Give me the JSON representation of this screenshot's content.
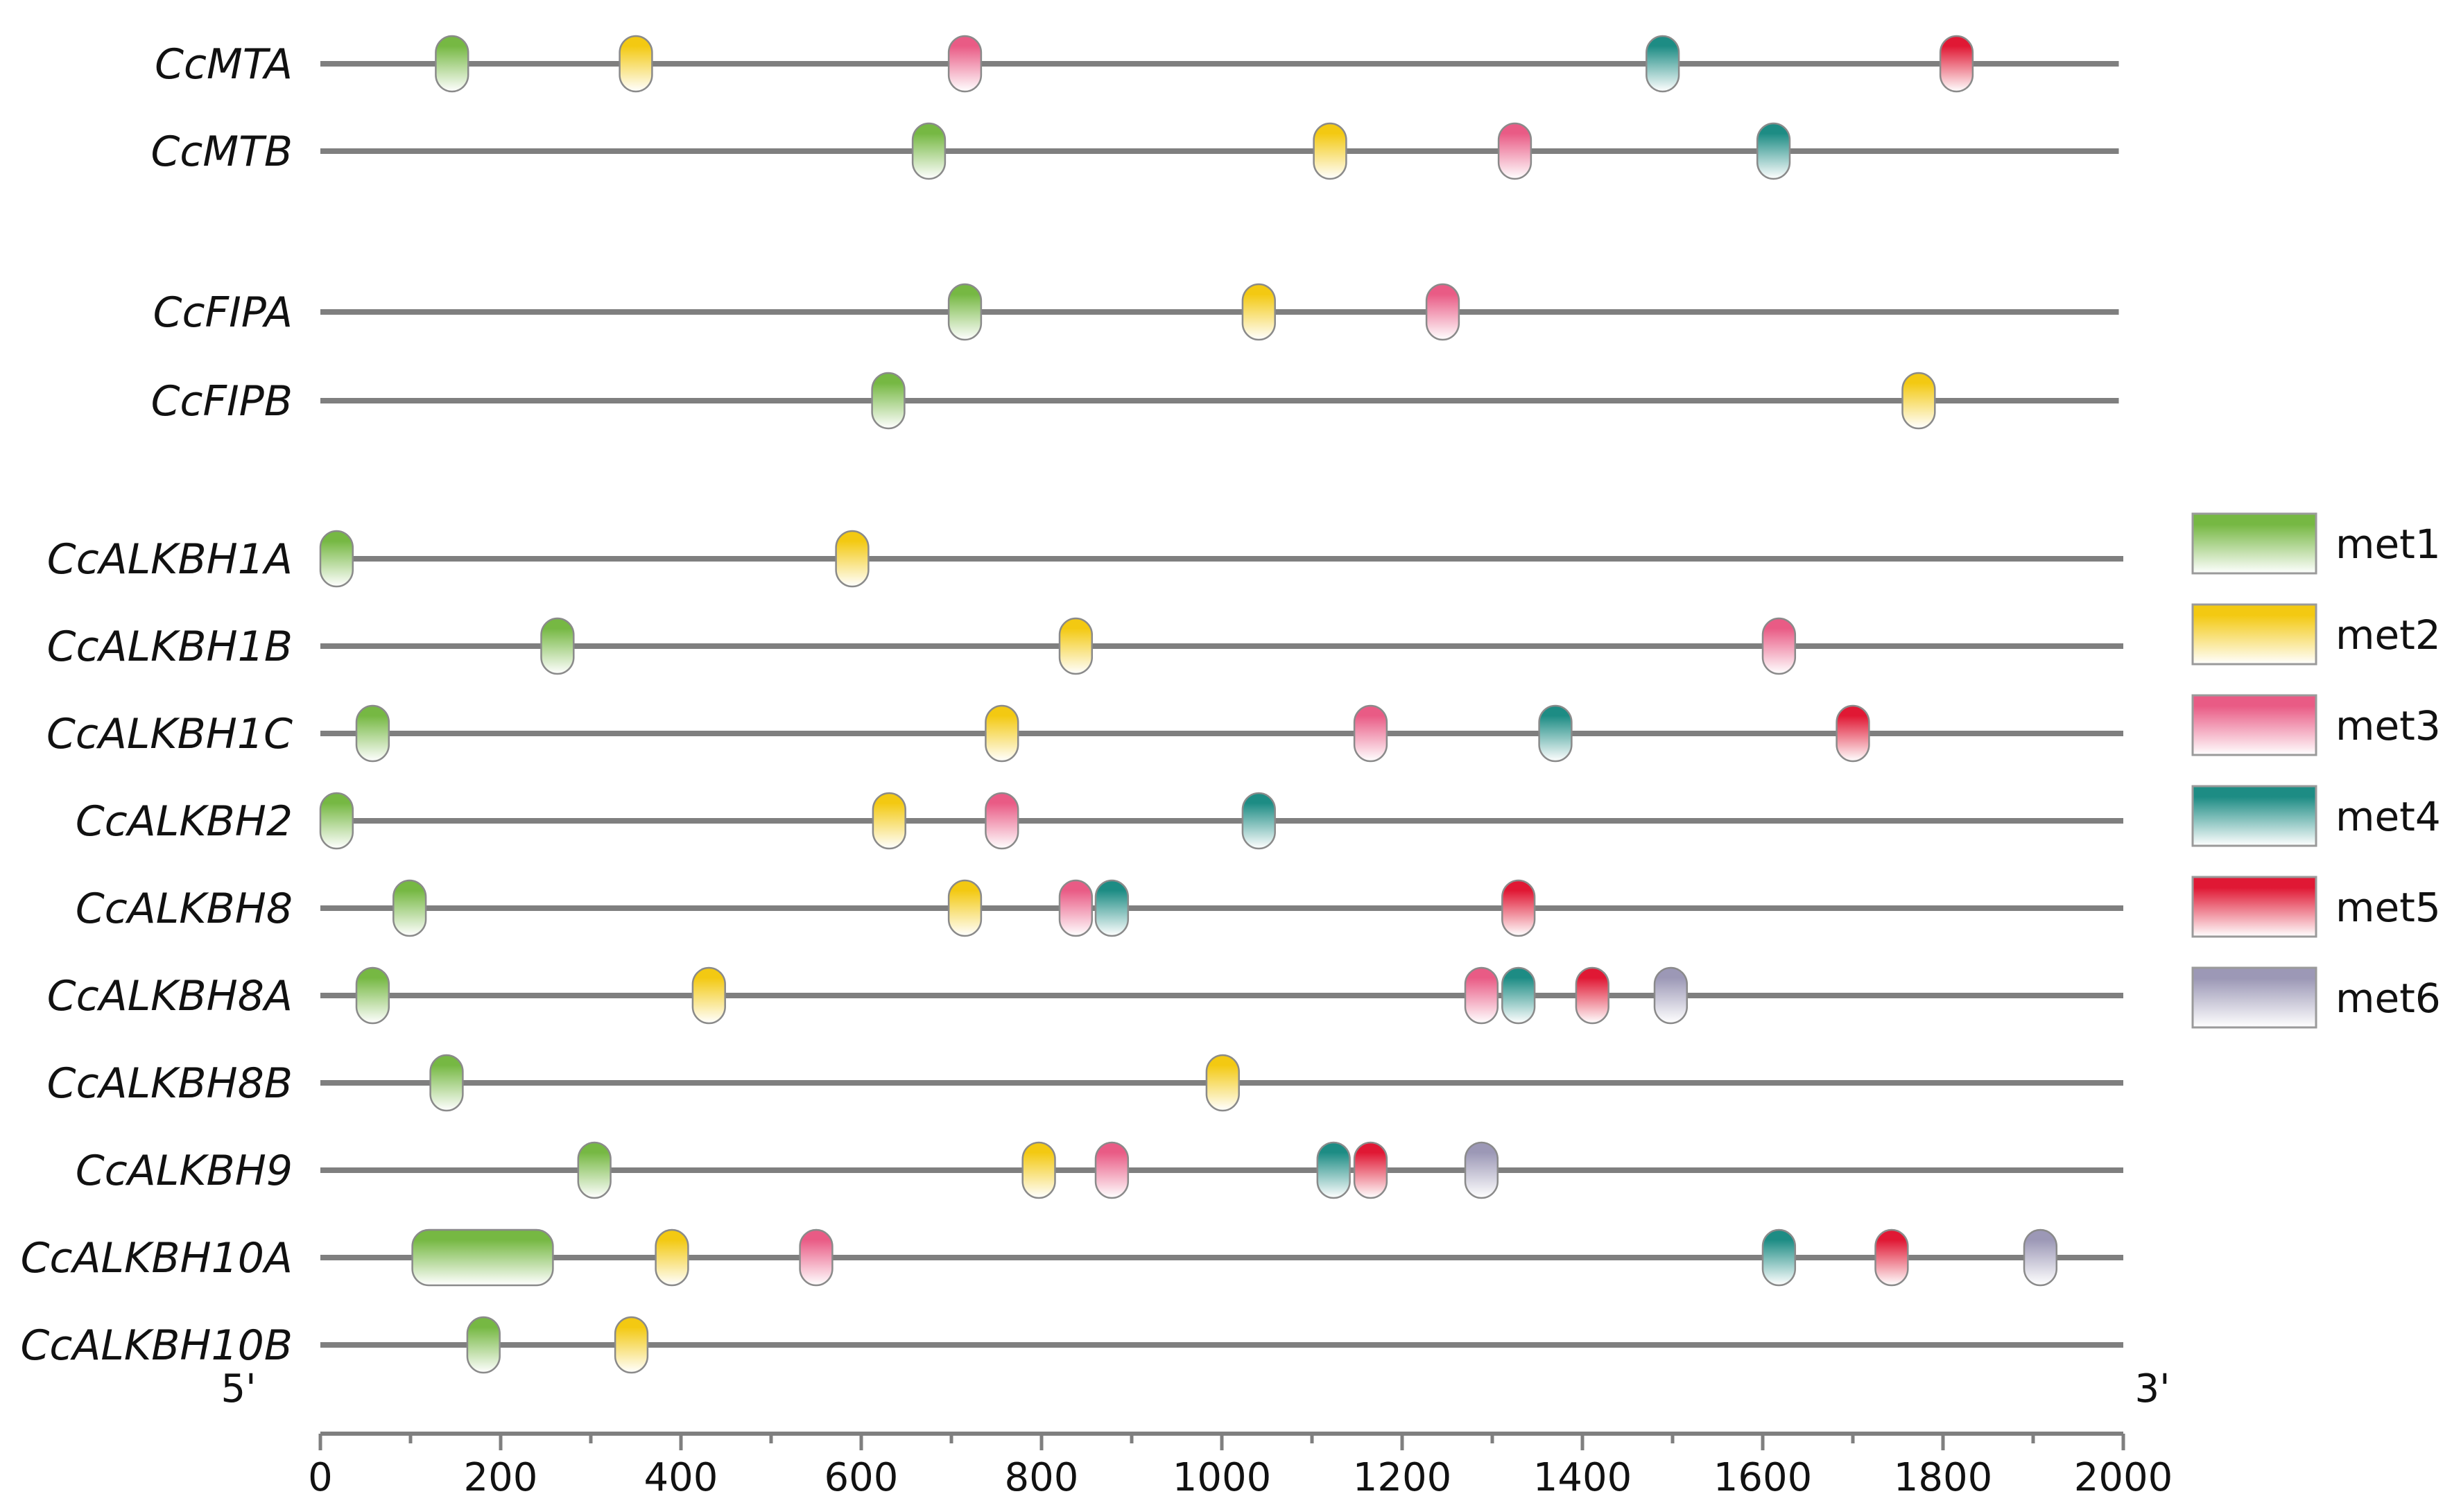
{
  "motif_colors": {
    "met1": "#76b843",
    "met2": "#f3c912",
    "met3": "#e95b85",
    "met4": "#1d8c84",
    "met5": "#e01834",
    "met6": "#9c98b6"
  },
  "axis": {
    "min": 0,
    "max": 2000,
    "ticks": [
      "0",
      "200",
      "400",
      "600",
      "800",
      "1000",
      "1200",
      "1400",
      "1600",
      "1800",
      "2000"
    ],
    "five_prime": "5'",
    "three_prime": "3'"
  },
  "legend": [
    {
      "motif": "met1",
      "label": "met1"
    },
    {
      "motif": "met2",
      "label": "met2"
    },
    {
      "motif": "met3",
      "label": "met3"
    },
    {
      "motif": "met4",
      "label": "met4"
    },
    {
      "motif": "met5",
      "label": "met5"
    },
    {
      "motif": "met6",
      "label": "met6"
    }
  ],
  "genes": [
    {
      "name": "CcMTA",
      "length": 1995,
      "motifs": [
        {
          "motif": "met1",
          "start": 128,
          "end": 164
        },
        {
          "motif": "met2",
          "start": 332,
          "end": 368
        },
        {
          "motif": "met3",
          "start": 697,
          "end": 733
        },
        {
          "motif": "met4",
          "start": 1471,
          "end": 1507
        },
        {
          "motif": "met5",
          "start": 1797,
          "end": 1833
        }
      ]
    },
    {
      "name": "CcMTB",
      "length": 1995,
      "motifs": [
        {
          "motif": "met1",
          "start": 657,
          "end": 693
        },
        {
          "motif": "met2",
          "start": 1102,
          "end": 1138
        },
        {
          "motif": "met3",
          "start": 1307,
          "end": 1343
        },
        {
          "motif": "met4",
          "start": 1594,
          "end": 1630
        }
      ]
    },
    {
      "name": "CcFIPA",
      "length": 1995,
      "motifs": [
        {
          "motif": "met1",
          "start": 697,
          "end": 733
        },
        {
          "motif": "met2",
          "start": 1023,
          "end": 1059
        },
        {
          "motif": "met3",
          "start": 1227,
          "end": 1263
        }
      ]
    },
    {
      "name": "CcFIPB",
      "length": 1995,
      "motifs": [
        {
          "motif": "met1",
          "start": 612,
          "end": 648
        },
        {
          "motif": "met2",
          "start": 1755,
          "end": 1791
        }
      ]
    },
    {
      "name": "CcALKBH1A",
      "length": 2000,
      "motifs": [
        {
          "motif": "met1",
          "start": 0,
          "end": 36
        },
        {
          "motif": "met2",
          "start": 572,
          "end": 608
        }
      ]
    },
    {
      "name": "CcALKBH1B",
      "length": 2000,
      "motifs": [
        {
          "motif": "met1",
          "start": 245,
          "end": 281
        },
        {
          "motif": "met2",
          "start": 820,
          "end": 856
        },
        {
          "motif": "met3",
          "start": 1600,
          "end": 1636
        }
      ]
    },
    {
      "name": "CcALKBH1C",
      "length": 2000,
      "motifs": [
        {
          "motif": "met1",
          "start": 40,
          "end": 76
        },
        {
          "motif": "met2",
          "start": 738,
          "end": 774
        },
        {
          "motif": "met3",
          "start": 1147,
          "end": 1183
        },
        {
          "motif": "met4",
          "start": 1352,
          "end": 1388
        },
        {
          "motif": "met5",
          "start": 1682,
          "end": 1718
        }
      ]
    },
    {
      "name": "CcALKBH2",
      "length": 2000,
      "motifs": [
        {
          "motif": "met1",
          "start": 0,
          "end": 36
        },
        {
          "motif": "met2",
          "start": 613,
          "end": 649
        },
        {
          "motif": "met3",
          "start": 738,
          "end": 774
        },
        {
          "motif": "met4",
          "start": 1023,
          "end": 1059
        }
      ]
    },
    {
      "name": "CcALKBH8",
      "length": 2000,
      "motifs": [
        {
          "motif": "met1",
          "start": 81,
          "end": 117
        },
        {
          "motif": "met2",
          "start": 697,
          "end": 733
        },
        {
          "motif": "met3",
          "start": 820,
          "end": 856
        },
        {
          "motif": "met4",
          "start": 860,
          "end": 896
        },
        {
          "motif": "met5",
          "start": 1311,
          "end": 1347
        }
      ]
    },
    {
      "name": "CcALKBH8A",
      "length": 2000,
      "motifs": [
        {
          "motif": "met1",
          "start": 40,
          "end": 76
        },
        {
          "motif": "met2",
          "start": 413,
          "end": 449
        },
        {
          "motif": "met3",
          "start": 1270,
          "end": 1306
        },
        {
          "motif": "met4",
          "start": 1311,
          "end": 1347
        },
        {
          "motif": "met5",
          "start": 1393,
          "end": 1429
        },
        {
          "motif": "met6",
          "start": 1480,
          "end": 1516
        }
      ]
    },
    {
      "name": "CcALKBH8B",
      "length": 2000,
      "motifs": [
        {
          "motif": "met1",
          "start": 122,
          "end": 158
        },
        {
          "motif": "met2",
          "start": 983,
          "end": 1019
        }
      ]
    },
    {
      "name": "CcALKBH9",
      "length": 2000,
      "motifs": [
        {
          "motif": "met1",
          "start": 286,
          "end": 322
        },
        {
          "motif": "met2",
          "start": 779,
          "end": 815
        },
        {
          "motif": "met3",
          "start": 860,
          "end": 896
        },
        {
          "motif": "met4",
          "start": 1106,
          "end": 1142
        },
        {
          "motif": "met5",
          "start": 1147,
          "end": 1183
        },
        {
          "motif": "met6",
          "start": 1270,
          "end": 1306
        }
      ]
    },
    {
      "name": "CcALKBH10A",
      "length": 2000,
      "motifs": [
        {
          "motif": "met1",
          "start": 102,
          "end": 258
        },
        {
          "motif": "met2",
          "start": 372,
          "end": 408
        },
        {
          "motif": "met3",
          "start": 532,
          "end": 568
        },
        {
          "motif": "met4",
          "start": 1600,
          "end": 1636
        },
        {
          "motif": "met5",
          "start": 1725,
          "end": 1761
        },
        {
          "motif": "met6",
          "start": 1890,
          "end": 1926
        }
      ]
    },
    {
      "name": "CcALKBH10B",
      "length": 2000,
      "motifs": [
        {
          "motif": "met1",
          "start": 163,
          "end": 199
        },
        {
          "motif": "met2",
          "start": 327,
          "end": 363
        }
      ]
    }
  ]
}
